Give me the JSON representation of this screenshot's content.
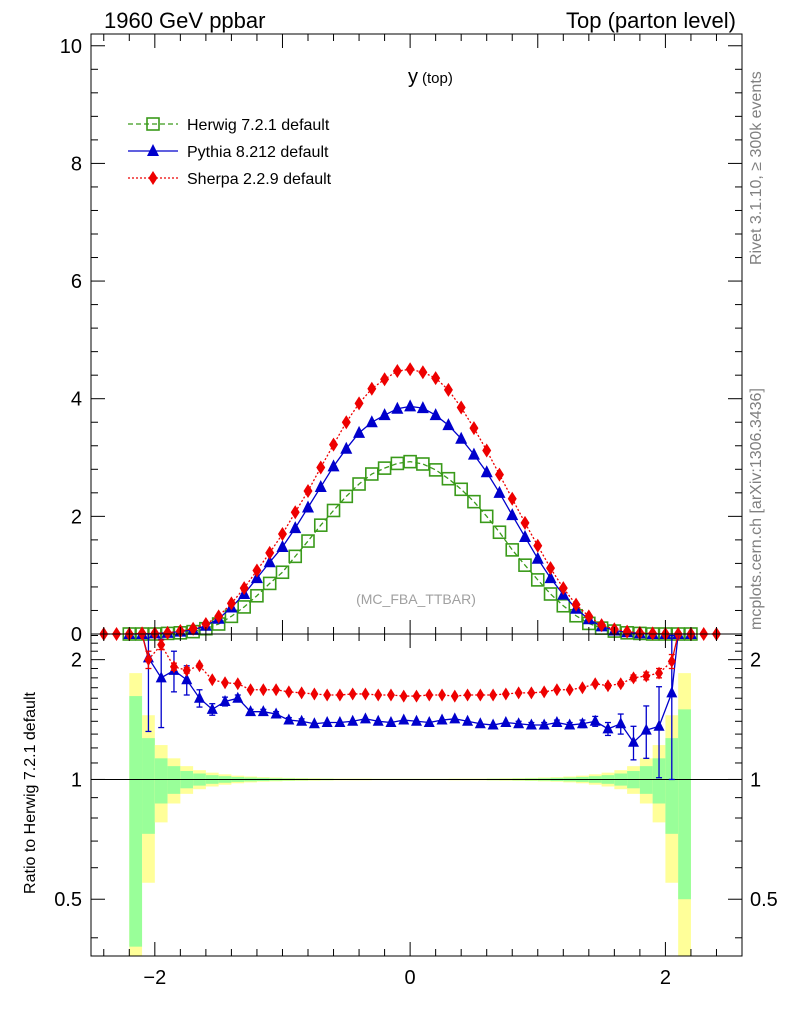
{
  "header": {
    "left": "1960 GeV ppbar",
    "right": "Top (parton level)"
  },
  "side_labels": {
    "rivet": "Rivet 3.1.10, ≥ 300k events",
    "mcplots": "mcplots.cern.ch [arXiv:1306.3436]"
  },
  "colors": {
    "herwig": "#3a9a1a",
    "pythia": "#0000cc",
    "sherpa": "#ee0000",
    "band_yellow": "#ffff99",
    "band_green": "#99ff99"
  },
  "chart_data": [
    {
      "type": "line",
      "title": "y",
      "title_sub": "(top)",
      "annotation": "(MC_FBA_TTBAR)",
      "xlim": [
        -2.5,
        2.6
      ],
      "ylim": [
        0,
        10.2
      ],
      "yticks": [
        0,
        2,
        4,
        6,
        8,
        10
      ],
      "ytick_labels": [
        "0",
        "2",
        "4",
        "6",
        "8",
        "10"
      ],
      "legend_position": "top-left",
      "series": [
        {
          "name": "Herwig 7.2.1 default",
          "color": "#3a9a1a",
          "marker": "open-square",
          "line": "dashed",
          "x": [
            -2.2,
            -2.1,
            -2.0,
            -1.9,
            -1.8,
            -1.7,
            -1.6,
            -1.5,
            -1.4,
            -1.3,
            -1.2,
            -1.1,
            -1.0,
            -0.9,
            -0.8,
            -0.7,
            -0.6,
            -0.5,
            -0.4,
            -0.3,
            -0.2,
            -0.1,
            0.0,
            0.1,
            0.2,
            0.3,
            0.4,
            0.5,
            0.6,
            0.7,
            0.8,
            0.9,
            1.0,
            1.1,
            1.2,
            1.3,
            1.4,
            1.5,
            1.6,
            1.7,
            1.8,
            1.9,
            2.0,
            2.1,
            2.2
          ],
          "y": [
            0.0,
            0.0,
            0.0,
            0.01,
            0.02,
            0.04,
            0.09,
            0.17,
            0.3,
            0.46,
            0.65,
            0.86,
            1.05,
            1.32,
            1.58,
            1.85,
            2.1,
            2.34,
            2.55,
            2.72,
            2.82,
            2.9,
            2.93,
            2.89,
            2.79,
            2.64,
            2.46,
            2.25,
            2.0,
            1.73,
            1.43,
            1.17,
            0.92,
            0.68,
            0.48,
            0.31,
            0.18,
            0.1,
            0.05,
            0.02,
            0.01,
            0.0,
            0.0,
            0.0,
            0.0
          ]
        },
        {
          "name": "Pythia 8.212 default",
          "color": "#0000cc",
          "marker": "filled-triangle",
          "line": "solid",
          "x": [
            -2.2,
            -2.1,
            -2.0,
            -1.9,
            -1.8,
            -1.7,
            -1.6,
            -1.5,
            -1.4,
            -1.3,
            -1.2,
            -1.1,
            -1.0,
            -0.9,
            -0.8,
            -0.7,
            -0.6,
            -0.5,
            -0.4,
            -0.3,
            -0.2,
            -0.1,
            0.0,
            0.1,
            0.2,
            0.3,
            0.4,
            0.5,
            0.6,
            0.7,
            0.8,
            0.9,
            1.0,
            1.1,
            1.2,
            1.3,
            1.4,
            1.5,
            1.6,
            1.7,
            1.8,
            1.9,
            2.0,
            2.1,
            2.2
          ],
          "y": [
            0.0,
            0.0,
            0.01,
            0.02,
            0.04,
            0.07,
            0.14,
            0.26,
            0.45,
            0.68,
            0.95,
            1.22,
            1.48,
            1.8,
            2.15,
            2.5,
            2.85,
            3.15,
            3.42,
            3.6,
            3.72,
            3.83,
            3.87,
            3.84,
            3.72,
            3.55,
            3.32,
            3.05,
            2.75,
            2.4,
            2.02,
            1.65,
            1.28,
            0.95,
            0.67,
            0.43,
            0.25,
            0.13,
            0.06,
            0.03,
            0.01,
            0.0,
            0.0,
            0.0,
            0.0
          ]
        },
        {
          "name": "Sherpa 2.2.9 default",
          "color": "#ee0000",
          "marker": "filled-diamond",
          "line": "dotted",
          "x": [
            -2.4,
            -2.3,
            -2.2,
            -2.1,
            -2.0,
            -1.9,
            -1.8,
            -1.7,
            -1.6,
            -1.5,
            -1.4,
            -1.3,
            -1.2,
            -1.1,
            -1.0,
            -0.9,
            -0.8,
            -0.7,
            -0.6,
            -0.5,
            -0.4,
            -0.3,
            -0.2,
            -0.1,
            0.0,
            0.1,
            0.2,
            0.3,
            0.4,
            0.5,
            0.6,
            0.7,
            0.8,
            0.9,
            1.0,
            1.1,
            1.2,
            1.3,
            1.4,
            1.5,
            1.6,
            1.7,
            1.8,
            1.9,
            2.0,
            2.1,
            2.2,
            2.3,
            2.4
          ],
          "y": [
            0.0,
            0.0,
            0.0,
            0.01,
            0.01,
            0.02,
            0.05,
            0.09,
            0.17,
            0.3,
            0.52,
            0.78,
            1.08,
            1.38,
            1.7,
            2.07,
            2.43,
            2.83,
            3.22,
            3.6,
            3.92,
            4.17,
            4.33,
            4.47,
            4.5,
            4.45,
            4.35,
            4.15,
            3.85,
            3.5,
            3.12,
            2.71,
            2.3,
            1.89,
            1.5,
            1.12,
            0.78,
            0.5,
            0.3,
            0.15,
            0.08,
            0.04,
            0.02,
            0.01,
            0.0,
            0.0,
            0.0,
            0.0,
            0.0
          ]
        }
      ]
    },
    {
      "type": "line",
      "ylabel": "Ratio to Herwig 7.2.1 default",
      "xlim": [
        -2.5,
        2.6
      ],
      "ylim": [
        0.36,
        2.32
      ],
      "yscale": "log",
      "xticks": [
        -2,
        0,
        2
      ],
      "xtick_labels": [
        "−2",
        "0",
        "2"
      ],
      "yticks": [
        0.5,
        1,
        2
      ],
      "ytick_labels": [
        "0.5",
        "1",
        "2"
      ],
      "reference_line": 1,
      "band_bins": {
        "edges": [
          -2.2,
          -2.1,
          -2.0,
          -1.9,
          -1.8,
          -1.7,
          -1.6,
          -1.5,
          -1.4,
          -1.3,
          -1.2,
          -1.1,
          -1.0,
          -0.9,
          -0.8,
          -0.7,
          -0.6,
          -0.5,
          -0.4,
          -0.3,
          -0.2,
          -0.1,
          0.0,
          0.1,
          0.2,
          0.3,
          0.4,
          0.5,
          0.6,
          0.7,
          0.8,
          0.9,
          1.0,
          1.1,
          1.2,
          1.3,
          1.4,
          1.5,
          1.6,
          1.7,
          1.8,
          1.9,
          2.0,
          2.1,
          2.2
        ],
        "yellow_half": [
          0.85,
          0.45,
          0.22,
          0.13,
          0.08,
          0.055,
          0.04,
          0.03,
          0.022,
          0.017,
          0.013,
          0.011,
          0.009,
          0.008,
          0.007,
          0.006,
          0.005,
          0.005,
          0.005,
          0.004,
          0.004,
          0.004,
          0.004,
          0.004,
          0.004,
          0.005,
          0.005,
          0.005,
          0.006,
          0.007,
          0.008,
          0.009,
          0.011,
          0.013,
          0.017,
          0.022,
          0.03,
          0.04,
          0.055,
          0.08,
          0.13,
          0.22,
          0.45,
          0.85
        ],
        "green_half": [
          0.62,
          0.27,
          0.13,
          0.08,
          0.05,
          0.035,
          0.025,
          0.019,
          0.014,
          0.011,
          0.009,
          0.007,
          0.006,
          0.005,
          0.004,
          0.004,
          0.003,
          0.003,
          0.003,
          0.003,
          0.003,
          0.003,
          0.003,
          0.003,
          0.003,
          0.003,
          0.003,
          0.003,
          0.004,
          0.004,
          0.005,
          0.006,
          0.007,
          0.009,
          0.011,
          0.014,
          0.019,
          0.025,
          0.035,
          0.05,
          0.08,
          0.13,
          0.27,
          0.5
        ]
      },
      "series": [
        {
          "name": "Pythia 8.212 default",
          "color": "#0000cc",
          "marker": "filled-triangle",
          "x": [
            -2.05,
            -1.95,
            -1.85,
            -1.75,
            -1.65,
            -1.55,
            -1.45,
            -1.35,
            -1.25,
            -1.15,
            -1.05,
            -0.95,
            -0.85,
            -0.75,
            -0.65,
            -0.55,
            -0.45,
            -0.35,
            -0.25,
            -0.15,
            -0.05,
            0.05,
            0.15,
            0.25,
            0.35,
            0.45,
            0.55,
            0.65,
            0.75,
            0.85,
            0.95,
            1.05,
            1.15,
            1.25,
            1.35,
            1.45,
            1.55,
            1.65,
            1.75,
            1.85,
            1.95,
            2.05
          ],
          "y": [
            2.02,
            1.8,
            1.88,
            1.78,
            1.6,
            1.5,
            1.57,
            1.6,
            1.48,
            1.48,
            1.46,
            1.41,
            1.4,
            1.38,
            1.39,
            1.39,
            1.4,
            1.42,
            1.4,
            1.39,
            1.41,
            1.4,
            1.39,
            1.41,
            1.42,
            1.4,
            1.38,
            1.37,
            1.39,
            1.38,
            1.37,
            1.37,
            1.39,
            1.37,
            1.38,
            1.4,
            1.34,
            1.38,
            1.24,
            1.33,
            1.36,
            1.65
          ],
          "err": [
            0.7,
            0.45,
            0.22,
            0.15,
            0.08,
            0.05,
            0.04,
            0.03,
            0.02,
            0.02,
            0.02,
            0.02,
            0.02,
            0.015,
            0.015,
            0.015,
            0.015,
            0.015,
            0.015,
            0.015,
            0.015,
            0.015,
            0.015,
            0.015,
            0.015,
            0.015,
            0.015,
            0.015,
            0.015,
            0.02,
            0.02,
            0.02,
            0.02,
            0.02,
            0.03,
            0.04,
            0.05,
            0.08,
            0.12,
            0.2,
            0.35,
            0.65
          ]
        },
        {
          "name": "Sherpa 2.2.9 default",
          "color": "#ee0000",
          "marker": "filled-diamond",
          "x": [
            -2.05,
            -1.95,
            -1.85,
            -1.75,
            -1.65,
            -1.55,
            -1.45,
            -1.35,
            -1.25,
            -1.15,
            -1.05,
            -0.95,
            -0.85,
            -0.75,
            -0.65,
            -0.55,
            -0.45,
            -0.35,
            -0.25,
            -0.15,
            -0.05,
            0.05,
            0.15,
            0.25,
            0.35,
            0.45,
            0.55,
            0.65,
            0.75,
            0.85,
            0.95,
            1.05,
            1.15,
            1.25,
            1.35,
            1.45,
            1.55,
            1.65,
            1.75,
            1.85,
            1.95,
            2.05
          ],
          "y": [
            2.0,
            2.18,
            1.92,
            1.88,
            1.93,
            1.78,
            1.75,
            1.74,
            1.68,
            1.68,
            1.68,
            1.66,
            1.65,
            1.64,
            1.63,
            1.63,
            1.64,
            1.64,
            1.63,
            1.63,
            1.62,
            1.62,
            1.63,
            1.63,
            1.62,
            1.63,
            1.63,
            1.63,
            1.64,
            1.65,
            1.65,
            1.66,
            1.68,
            1.68,
            1.7,
            1.74,
            1.72,
            1.74,
            1.8,
            1.82,
            1.85,
            1.98
          ],
          "err": [
            0.1,
            0.06,
            0.04,
            0.03,
            0.02,
            0.015,
            0.012,
            0.01,
            0.01,
            0.01,
            0.01,
            0.01,
            0.01,
            0.01,
            0.01,
            0.01,
            0.01,
            0.01,
            0.01,
            0.01,
            0.01,
            0.01,
            0.01,
            0.01,
            0.01,
            0.01,
            0.01,
            0.01,
            0.01,
            0.01,
            0.01,
            0.01,
            0.01,
            0.01,
            0.012,
            0.015,
            0.02,
            0.02,
            0.03,
            0.04,
            0.05,
            0.08
          ]
        }
      ]
    }
  ]
}
